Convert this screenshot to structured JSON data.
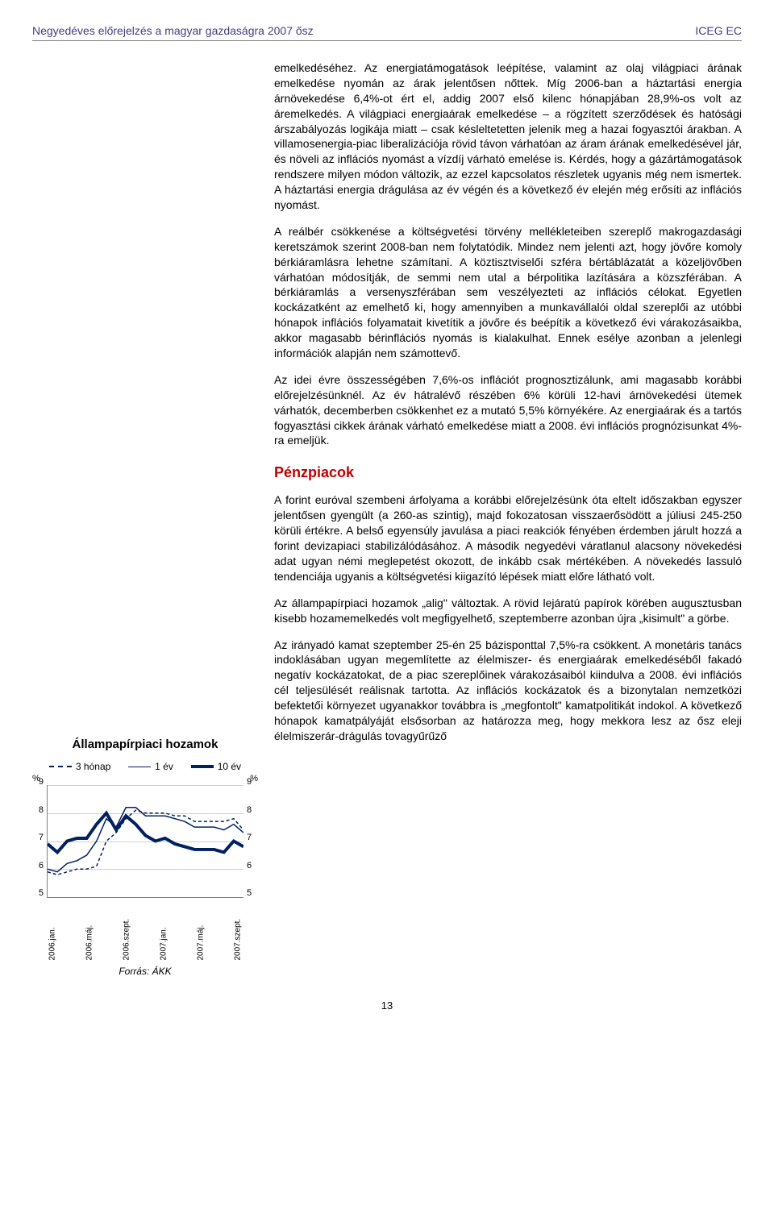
{
  "header": {
    "left": "Negyedéves előrejelzés a magyar gazdaságra 2007 ősz",
    "right": "ICEG EC"
  },
  "paragraphs": {
    "p1": "emelkedéséhez. Az energiatámogatások leépítése, valamint az olaj világpiaci árának emelkedése nyomán az árak jelentősen nőttek. Míg 2006-ban a háztartási energia árnövekedése 6,4%-ot ért el, addig 2007 első kilenc hónapjában 28,9%-os volt az áremelkedés. A világpiaci energiaárak emelkedése – a rögzített szerződések és hatósági árszabályozás logikája miatt – csak késleltetetten jelenik meg a hazai fogyasztói árakban. A villamosenergia-piac liberalizációja rövid távon várhatóan az áram árának emelkedésével jár, és növeli az inflációs nyomást a vízdíj várható emelése is. Kérdés, hogy a gázártámogatások rendszere milyen módon változik, az ezzel kapcsolatos részletek ugyanis még nem ismertek. A háztartási energia drágulása az év végén és a következő év elején még erősíti az inflációs nyomást.",
    "p2": "A reálbér csökkenése a költségvetési törvény mellékleteiben szereplő makrogazdasági keretszámok szerint 2008-ban nem folytatódik. Mindez nem jelenti azt, hogy jövőre komoly bérkiáramlásra lehetne számítani. A köztisztviselői szféra bértáblázatát a közeljövőben várhatóan módosítják, de semmi nem utal a bérpolitika lazítására a közszférában. A bérkiáramlás a versenyszférában sem veszélyezteti az inflációs célokat. Egyetlen kockázatként az emelhető ki, hogy amennyiben a munkavállalói oldal szereplői az utóbbi hónapok inflációs folyamatait kivetítik a jövőre és beépítik a következő évi várakozásaikba, akkor magasabb bérinflációs nyomás is kialakulhat. Ennek esélye azonban a jelenlegi információk alapján nem számottevő.",
    "p3": "Az idei évre összességében 7,6%-os inflációt prognosztizálunk, ami magasabb korábbi előrejelzésünknél. Az év hátralévő részében 6% körüli 12-havi árnövekedési ütemek várhatók, decemberben csökkenhet ez a mutató 5,5% környékére. Az energiaárak és a tartós fogyasztási cikkek árának várható emelkedése miatt a 2008. évi inflációs prognózisunkat 4%-ra emeljük.",
    "section_title": "Pénzpiacok",
    "p4": "A forint euróval szembeni árfolyama a korábbi előrejelzésünk óta eltelt időszakban egyszer jelentősen gyengült (a 260-as szintig), majd fokozatosan visszaerősödött a júliusi 245-250 körüli értékre. A belső egyensúly javulása a piaci reakciók fényében érdemben járult hozzá a forint devizapiaci stabilizálódásához. A második negyedévi váratlanul alacsony növekedési adat ugyan némi meglepetést okozott, de inkább csak mértékében. A növekedés lassuló tendenciája ugyanis a költségvetési kiigazító lépések miatt előre látható volt.",
    "p5": "Az állampapírpiaci hozamok „alig\" változtak. A rövid lejáratú papírok körében augusztusban kisebb hozamemelkedés volt megfigyelhető, szeptemberre azonban újra „kisimult\" a görbe.",
    "p6": "Az irányadó kamat szeptember 25-én 25 bázisponttal 7,5%-ra csökkent. A monetáris tanács indoklásában ugyan megemlítette az élelmiszer- és energiaárak emelkedéséből fakadó negatív kockázatokat, de a piac szereplőinek várakozásaiból kiindulva a 2008. évi inflációs cél teljesülését reálisnak tartotta. Az inflációs kockázatok és a bizonytalan nemzetközi befektetői környezet ugyanakkor továbbra is „megfontolt\" kamatpolitikát indokol. A következő hónapok kamatpályáját elsősorban az határozza meg, hogy mekkora lesz az ősz eleji élelmiszerár-drágulás tovagyűrűző"
  },
  "chart": {
    "title": "Állampapírpiaci hozamok",
    "legend": {
      "s1": "3 hónap",
      "s2": "1 év",
      "s3": "10 év"
    },
    "y_unit": "%",
    "y_ticks": [
      "9",
      "8",
      "7",
      "6",
      "5"
    ],
    "x_labels": [
      "2006.jan.",
      "2006.máj.",
      "2006.szept.",
      "2007.jan.",
      "2007.máj.",
      "2007.szept."
    ],
    "source": "Forrás: ÁKK",
    "ylim": [
      5,
      9
    ],
    "series": {
      "three_month": {
        "style": "dashed",
        "color": "#002060",
        "width": 1.5,
        "points": [
          5.9,
          5.8,
          5.9,
          6.0,
          6.0,
          6.1,
          7.0,
          7.3,
          7.8,
          8.1,
          8.0,
          8.0,
          8.0,
          7.9,
          7.9,
          7.7,
          7.7,
          7.7,
          7.7,
          7.8,
          7.4
        ]
      },
      "one_year": {
        "style": "solid",
        "color": "#002060",
        "width": 1.5,
        "points": [
          6.0,
          5.9,
          6.2,
          6.3,
          6.5,
          7.0,
          7.8,
          7.5,
          8.2,
          8.2,
          7.9,
          7.9,
          7.9,
          7.8,
          7.7,
          7.5,
          7.5,
          7.5,
          7.4,
          7.6,
          7.3
        ]
      },
      "ten_year": {
        "style": "solid",
        "color": "#002060",
        "width": 4,
        "points": [
          6.9,
          6.6,
          7.0,
          7.1,
          7.1,
          7.6,
          8.0,
          7.4,
          7.9,
          7.6,
          7.2,
          7.0,
          7.1,
          6.9,
          6.8,
          6.7,
          6.7,
          6.7,
          6.6,
          7.0,
          6.8
        ]
      }
    }
  },
  "page_number": "13"
}
